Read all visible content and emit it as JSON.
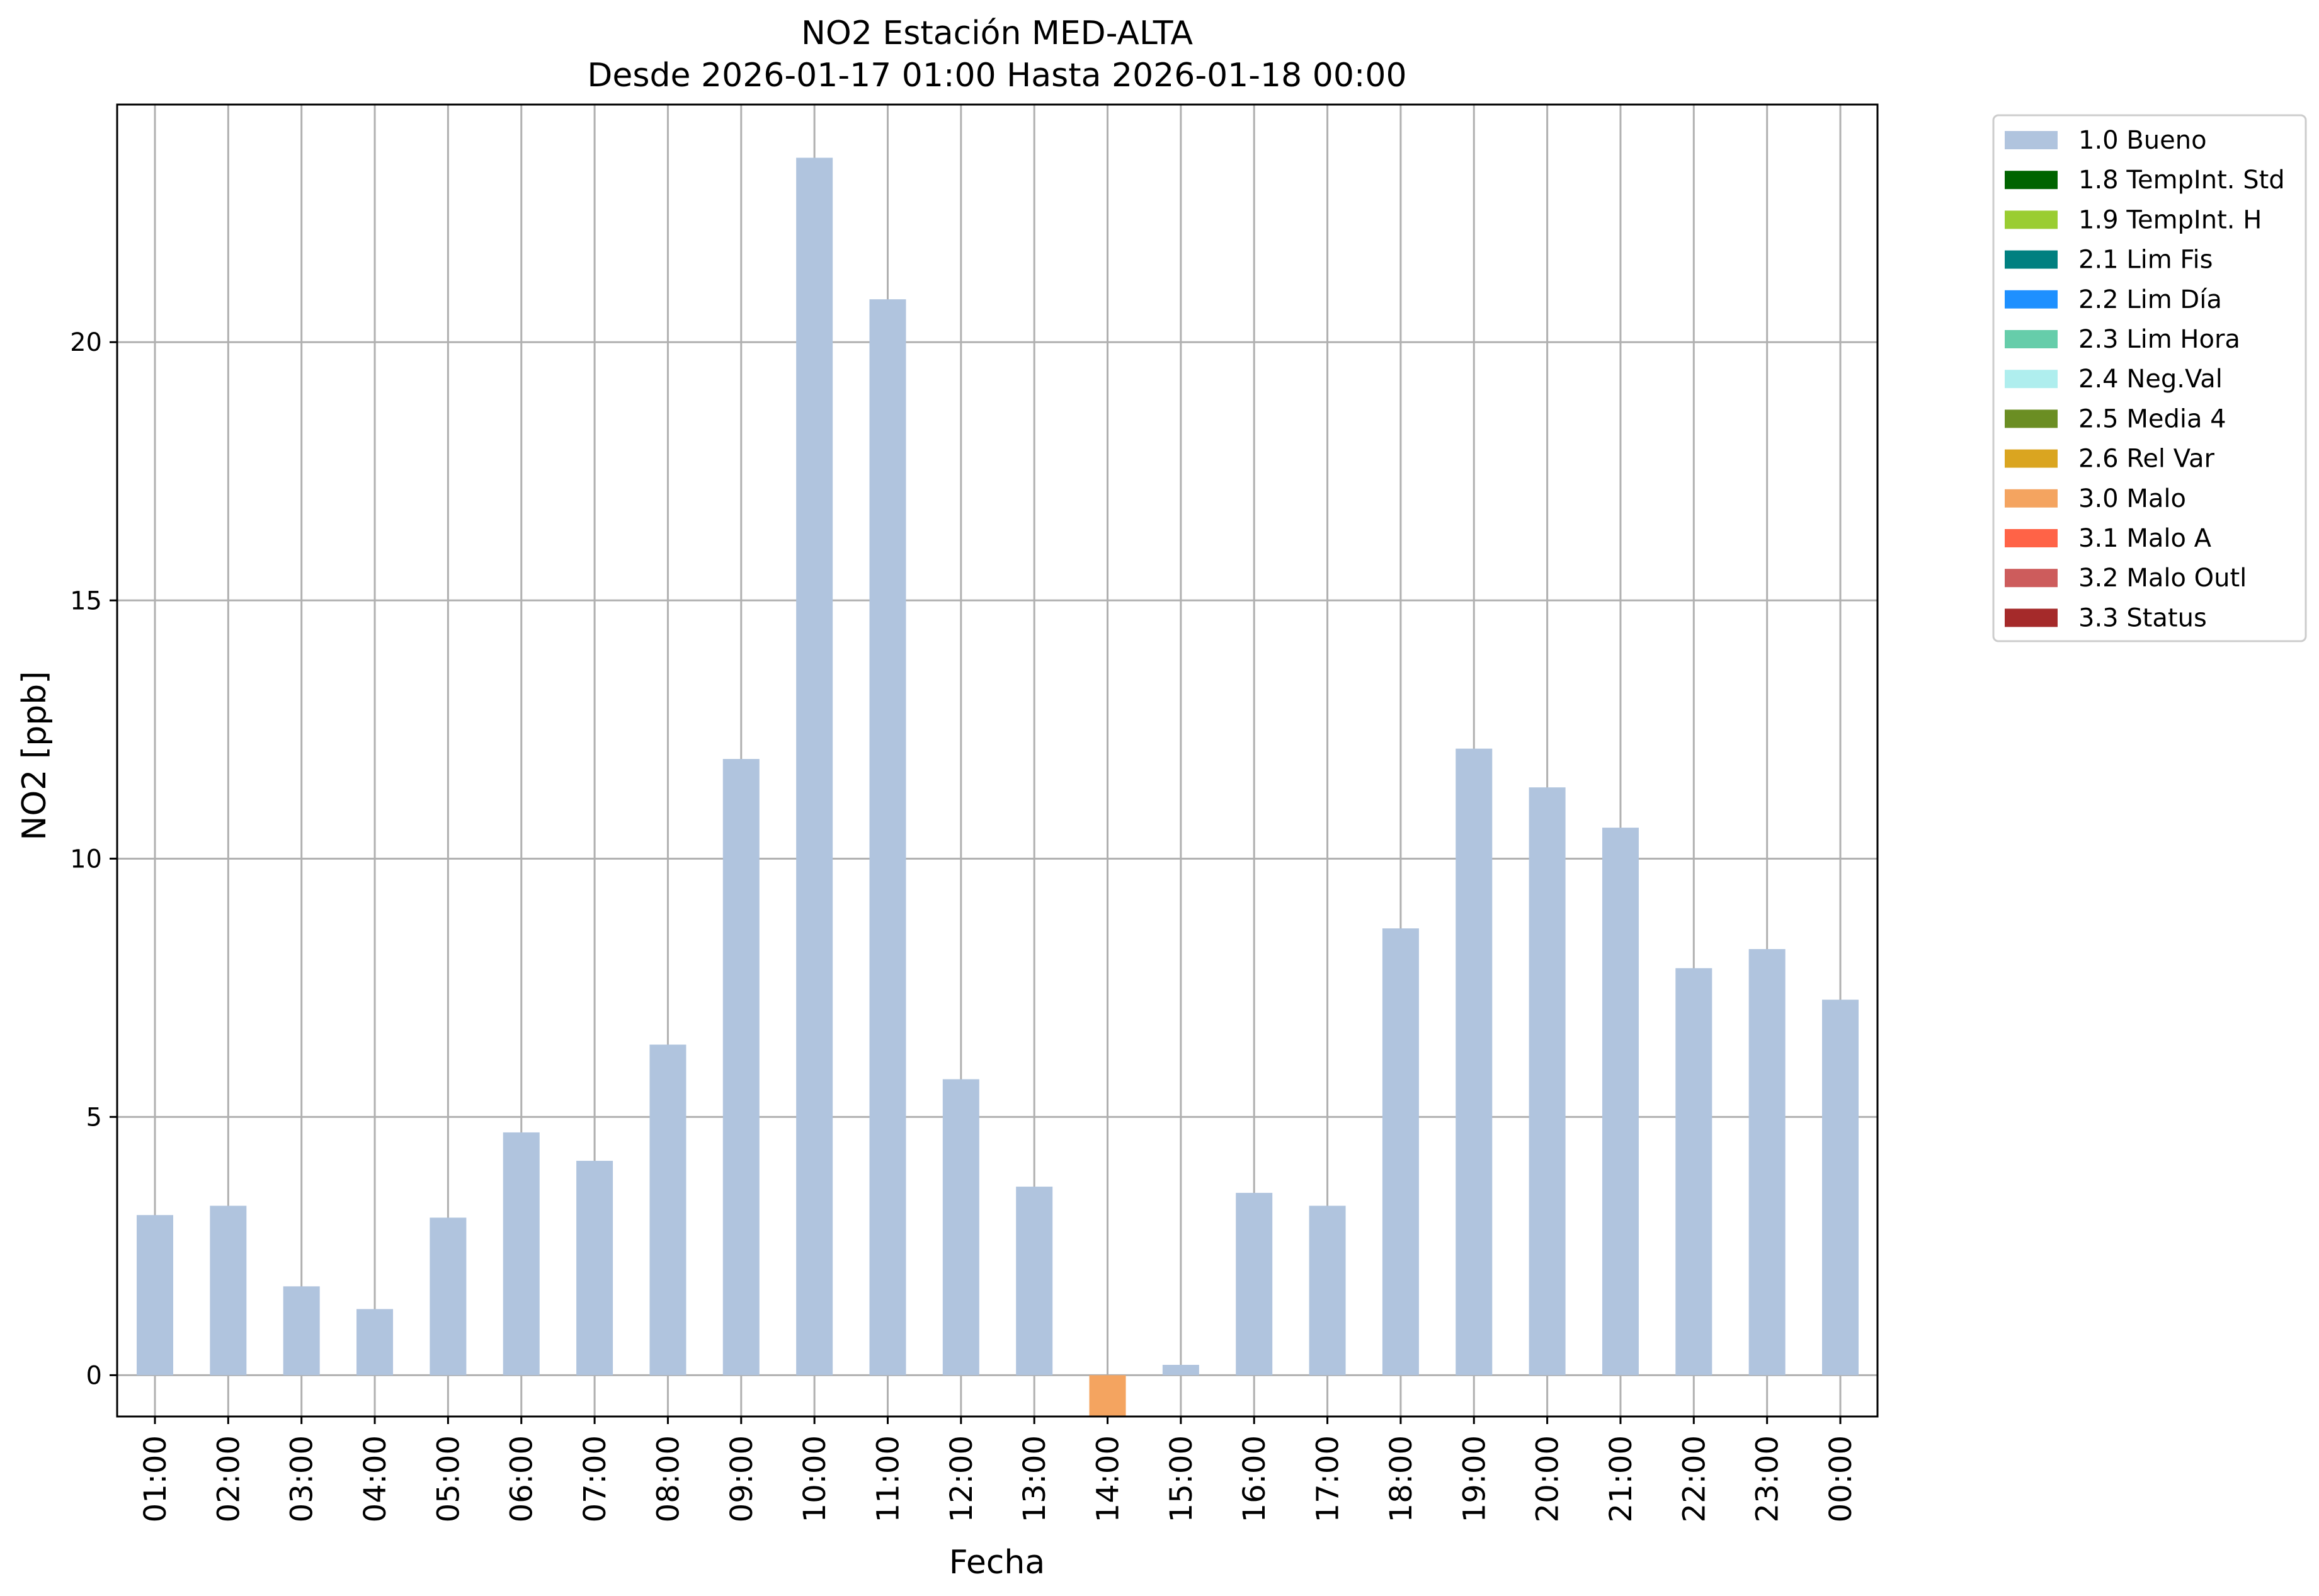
{
  "chart_data": {
    "type": "bar",
    "title": "NO2 Estación MED-ALTA",
    "subtitle": "Desde 2026-01-17 01:00 Hasta 2026-01-18 00:00",
    "xlabel": "Fecha",
    "ylabel": "NO2 [ppb]",
    "ylim": [
      -0.8,
      24.6
    ],
    "yticks": [
      0,
      5,
      10,
      15,
      20
    ],
    "grid": true,
    "legend_position": "outside-right-top",
    "categories": [
      "01:00",
      "02:00",
      "03:00",
      "04:00",
      "05:00",
      "06:00",
      "07:00",
      "08:00",
      "09:00",
      "10:00",
      "11:00",
      "12:00",
      "13:00",
      "14:00",
      "15:00",
      "16:00",
      "17:00",
      "18:00",
      "19:00",
      "20:00",
      "21:00",
      "22:00",
      "23:00",
      "00:00"
    ],
    "values": [
      3.1,
      3.28,
      1.72,
      1.28,
      3.05,
      4.7,
      4.15,
      6.4,
      11.93,
      23.57,
      20.83,
      5.73,
      3.65,
      -0.9,
      0.2,
      3.53,
      3.28,
      8.65,
      12.13,
      11.38,
      10.6,
      7.88,
      8.25,
      7.27
    ],
    "flags": [
      "1.0",
      "1.0",
      "1.0",
      "1.0",
      "1.0",
      "1.0",
      "1.0",
      "1.0",
      "1.0",
      "1.0",
      "1.0",
      "1.0",
      "1.0",
      "3.0",
      "1.0",
      "1.0",
      "1.0",
      "1.0",
      "1.0",
      "1.0",
      "1.0",
      "1.0",
      "1.0",
      "1.0"
    ],
    "legend": [
      {
        "code": "1.0",
        "label": "1.0 Bueno",
        "color": "#b0c4de"
      },
      {
        "code": "1.8",
        "label": "1.8 TempInt. Std",
        "color": "#006400"
      },
      {
        "code": "1.9",
        "label": "1.9 TempInt. H",
        "color": "#9acd32"
      },
      {
        "code": "2.1",
        "label": "2.1 Lim Fis",
        "color": "#008080"
      },
      {
        "code": "2.2",
        "label": "2.2 Lim Día",
        "color": "#1e90ff"
      },
      {
        "code": "2.3",
        "label": "2.3 Lim Hora",
        "color": "#66cdaa"
      },
      {
        "code": "2.4",
        "label": "2.4 Neg.Val",
        "color": "#afeeee"
      },
      {
        "code": "2.5",
        "label": "2.5 Media 4",
        "color": "#6b8e23"
      },
      {
        "code": "2.6",
        "label": "2.6 Rel Var",
        "color": "#daa520"
      },
      {
        "code": "3.0",
        "label": "3.0 Malo",
        "color": "#f4a460"
      },
      {
        "code": "3.1",
        "label": "3.1 Malo A",
        "color": "#ff6347"
      },
      {
        "code": "3.2",
        "label": "3.2 Malo Outl",
        "color": "#cd5c5c"
      },
      {
        "code": "3.3",
        "label": "3.3 Status",
        "color": "#a52a2a"
      }
    ]
  }
}
